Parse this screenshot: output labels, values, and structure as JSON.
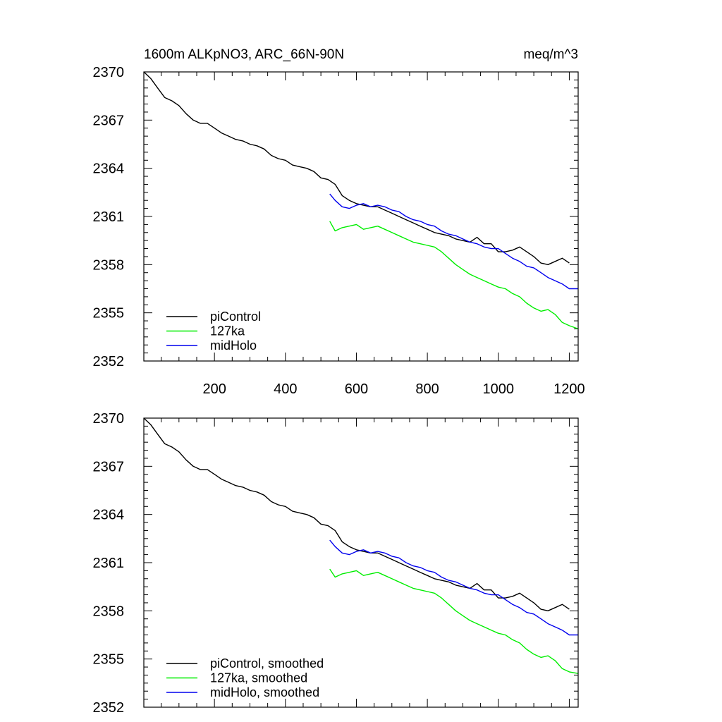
{
  "chart_data": [
    {
      "type": "line",
      "title": "1600m ALKpNO3, ARC_66N-90N",
      "units_label": "meq/m^3",
      "xlim": [
        1,
        1225
      ],
      "ylim": [
        2352,
        2370
      ],
      "xticks": [
        200,
        400,
        600,
        800,
        1000,
        1200
      ],
      "xtick_labels": [
        "200",
        "400",
        "600",
        "800",
        "1000",
        "1200"
      ],
      "yticks": [
        2370,
        2367,
        2364,
        2361,
        2358,
        2355,
        2352
      ],
      "ytick_labels": [
        "2370",
        "2367",
        "2364",
        "2361",
        "2358",
        "2355",
        "2352"
      ],
      "legend_position": "bottom-left",
      "series": [
        {
          "name": "piControl",
          "color": "#000000",
          "x": [
            1,
            20,
            40,
            60,
            80,
            100,
            120,
            140,
            160,
            180,
            200,
            220,
            240,
            260,
            280,
            300,
            320,
            340,
            360,
            380,
            400,
            420,
            440,
            460,
            480,
            500,
            520,
            540,
            560,
            580,
            600,
            620,
            640,
            660,
            680,
            700,
            720,
            740,
            760,
            780,
            800,
            820,
            840,
            860,
            880,
            900,
            920,
            940,
            960,
            980,
            1000,
            1020,
            1040,
            1060,
            1080,
            1100,
            1120,
            1140,
            1160,
            1180,
            1200
          ],
          "values": [
            2370.0,
            2369.6,
            2369.0,
            2368.4,
            2368.2,
            2367.9,
            2367.4,
            2367.0,
            2366.8,
            2366.8,
            2366.5,
            2366.2,
            2366.0,
            2365.8,
            2365.7,
            2365.5,
            2365.4,
            2365.2,
            2364.8,
            2364.6,
            2364.5,
            2364.2,
            2364.1,
            2364.0,
            2363.8,
            2363.4,
            2363.3,
            2363.0,
            2362.3,
            2362.0,
            2361.8,
            2361.7,
            2361.6,
            2361.6,
            2361.4,
            2361.2,
            2361.0,
            2360.8,
            2360.6,
            2360.4,
            2360.2,
            2360.0,
            2359.9,
            2359.8,
            2359.6,
            2359.5,
            2359.4,
            2359.7,
            2359.3,
            2359.3,
            2358.8,
            2358.8,
            2358.9,
            2359.1,
            2358.8,
            2358.5,
            2358.1,
            2358.0,
            2358.2,
            2358.4,
            2358.1
          ]
        },
        {
          "name": "127ka",
          "color": "#00ee00",
          "x": [
            525,
            540,
            560,
            580,
            600,
            620,
            640,
            660,
            680,
            700,
            720,
            740,
            760,
            780,
            800,
            820,
            840,
            860,
            880,
            900,
            920,
            940,
            960,
            980,
            1000,
            1020,
            1040,
            1060,
            1080,
            1100,
            1120,
            1140,
            1160,
            1180,
            1200,
            1225
          ],
          "values": [
            2360.7,
            2360.1,
            2360.3,
            2360.4,
            2360.5,
            2360.2,
            2360.3,
            2360.4,
            2360.2,
            2360.0,
            2359.8,
            2359.6,
            2359.4,
            2359.3,
            2359.2,
            2359.1,
            2358.8,
            2358.4,
            2358.0,
            2357.7,
            2357.4,
            2357.2,
            2357.0,
            2356.8,
            2356.6,
            2356.5,
            2356.2,
            2356.0,
            2355.6,
            2355.3,
            2355.1,
            2355.2,
            2354.9,
            2354.4,
            2354.2,
            2354.0
          ]
        },
        {
          "name": "midHolo",
          "color": "#0000ee",
          "x": [
            525,
            540,
            560,
            580,
            600,
            620,
            640,
            660,
            680,
            700,
            720,
            740,
            760,
            780,
            800,
            820,
            840,
            860,
            880,
            900,
            920,
            940,
            960,
            980,
            1000,
            1020,
            1040,
            1060,
            1080,
            1100,
            1120,
            1140,
            1160,
            1180,
            1200,
            1225
          ],
          "values": [
            2362.4,
            2362.0,
            2361.6,
            2361.5,
            2361.7,
            2361.8,
            2361.6,
            2361.7,
            2361.6,
            2361.4,
            2361.3,
            2361.0,
            2360.8,
            2360.7,
            2360.5,
            2360.4,
            2360.1,
            2359.9,
            2359.8,
            2359.6,
            2359.4,
            2359.3,
            2359.1,
            2359.0,
            2359.0,
            2358.7,
            2358.4,
            2358.2,
            2357.9,
            2357.8,
            2357.5,
            2357.2,
            2357.0,
            2356.8,
            2356.5,
            2356.5
          ]
        }
      ]
    },
    {
      "type": "line",
      "title": "",
      "xlim": [
        1,
        1225
      ],
      "ylim": [
        2352,
        2370
      ],
      "yticks": [
        2370,
        2367,
        2364,
        2361,
        2358,
        2355,
        2352
      ],
      "ytick_labels": [
        "2370",
        "2367",
        "2364",
        "2361",
        "2358",
        "2355",
        "2352"
      ],
      "legend_position": "bottom-left",
      "series": [
        {
          "name": "piControl, smoothed",
          "color": "#000000",
          "x": [
            1,
            20,
            40,
            60,
            80,
            100,
            120,
            140,
            160,
            180,
            200,
            220,
            240,
            260,
            280,
            300,
            320,
            340,
            360,
            380,
            400,
            420,
            440,
            460,
            480,
            500,
            520,
            540,
            560,
            580,
            600,
            620,
            640,
            660,
            680,
            700,
            720,
            740,
            760,
            780,
            800,
            820,
            840,
            860,
            880,
            900,
            920,
            940,
            960,
            980,
            1000,
            1020,
            1040,
            1060,
            1080,
            1100,
            1120,
            1140,
            1160,
            1180,
            1200
          ],
          "values": [
            2370.0,
            2369.6,
            2369.0,
            2368.4,
            2368.2,
            2367.9,
            2367.4,
            2367.0,
            2366.8,
            2366.8,
            2366.5,
            2366.2,
            2366.0,
            2365.8,
            2365.7,
            2365.5,
            2365.4,
            2365.2,
            2364.8,
            2364.6,
            2364.5,
            2364.2,
            2364.1,
            2364.0,
            2363.8,
            2363.4,
            2363.3,
            2363.0,
            2362.3,
            2362.0,
            2361.8,
            2361.7,
            2361.6,
            2361.6,
            2361.4,
            2361.2,
            2361.0,
            2360.8,
            2360.6,
            2360.4,
            2360.2,
            2360.0,
            2359.9,
            2359.8,
            2359.6,
            2359.5,
            2359.4,
            2359.7,
            2359.3,
            2359.3,
            2358.8,
            2358.8,
            2358.9,
            2359.1,
            2358.8,
            2358.5,
            2358.1,
            2358.0,
            2358.2,
            2358.4,
            2358.1
          ]
        },
        {
          "name": "127ka, smoothed",
          "color": "#00ee00",
          "x": [
            525,
            540,
            560,
            580,
            600,
            620,
            640,
            660,
            680,
            700,
            720,
            740,
            760,
            780,
            800,
            820,
            840,
            860,
            880,
            900,
            920,
            940,
            960,
            980,
            1000,
            1020,
            1040,
            1060,
            1080,
            1100,
            1120,
            1140,
            1160,
            1180,
            1200,
            1225
          ],
          "values": [
            2360.6,
            2360.1,
            2360.3,
            2360.4,
            2360.5,
            2360.2,
            2360.3,
            2360.4,
            2360.2,
            2360.0,
            2359.8,
            2359.6,
            2359.4,
            2359.3,
            2359.2,
            2359.1,
            2358.8,
            2358.4,
            2358.0,
            2357.7,
            2357.4,
            2357.2,
            2357.0,
            2356.8,
            2356.6,
            2356.5,
            2356.2,
            2356.0,
            2355.6,
            2355.3,
            2355.1,
            2355.2,
            2354.9,
            2354.4,
            2354.2,
            2354.1
          ]
        },
        {
          "name": "midHolo, smoothed",
          "color": "#0000ee",
          "x": [
            525,
            540,
            560,
            580,
            600,
            620,
            640,
            660,
            680,
            700,
            720,
            740,
            760,
            780,
            800,
            820,
            840,
            860,
            880,
            900,
            920,
            940,
            960,
            980,
            1000,
            1020,
            1040,
            1060,
            1080,
            1100,
            1120,
            1140,
            1160,
            1180,
            1200,
            1225
          ],
          "values": [
            2362.4,
            2362.0,
            2361.6,
            2361.5,
            2361.7,
            2361.8,
            2361.6,
            2361.7,
            2361.6,
            2361.4,
            2361.3,
            2361.0,
            2360.8,
            2360.7,
            2360.5,
            2360.4,
            2360.1,
            2359.9,
            2359.8,
            2359.6,
            2359.4,
            2359.3,
            2359.1,
            2359.0,
            2359.0,
            2358.7,
            2358.4,
            2358.2,
            2357.9,
            2357.8,
            2357.5,
            2357.2,
            2357.0,
            2356.8,
            2356.5,
            2356.5
          ]
        }
      ]
    }
  ]
}
